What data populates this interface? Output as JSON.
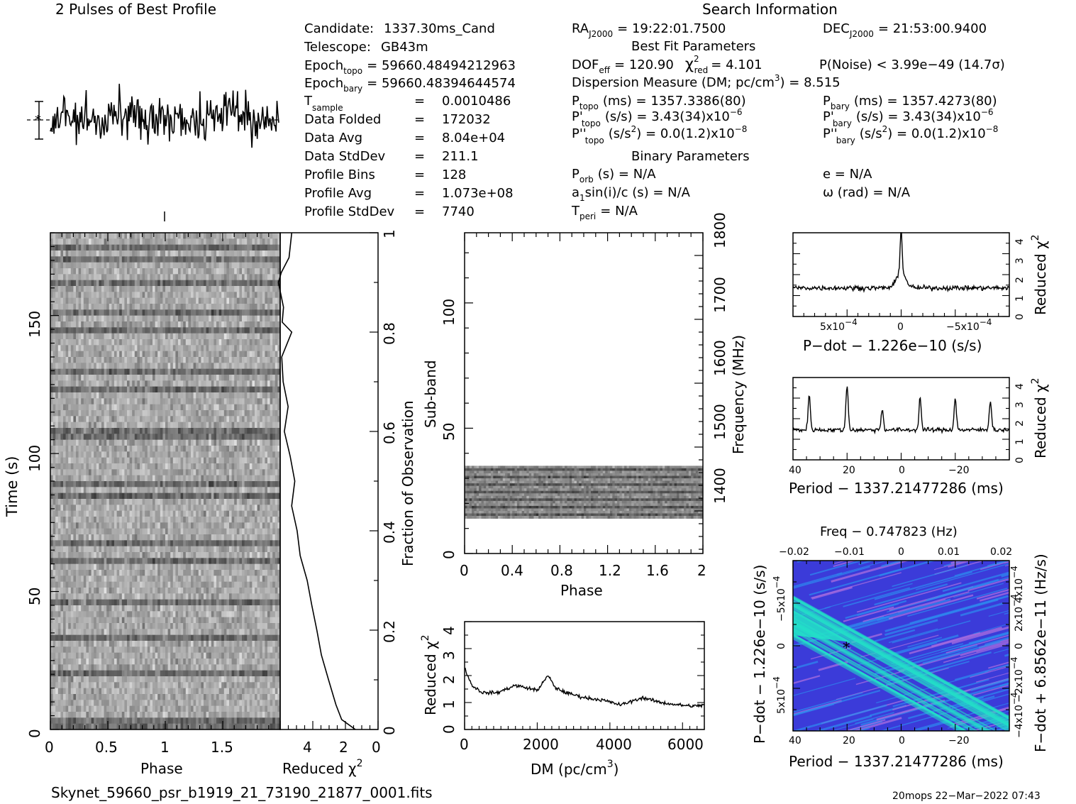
{
  "profile_title": "2 Pulses of Best Profile",
  "search_title": "Search Information",
  "candidate": {
    "candidate_label": "Candidate:",
    "candidate_value": "1337.30ms_Cand",
    "telescope_label": "Telescope:",
    "telescope_value": "GB43m",
    "epoch_topo_label": "Epoch",
    "epoch_topo_sub": "topo",
    "epoch_topo_value": "= 59660.48494212963",
    "epoch_bary_label": "Epoch",
    "epoch_bary_sub": "bary",
    "epoch_bary_value": "= 59660.48394644574",
    "tsample_label": "T",
    "tsample_sub": "sample",
    "tsample_value": "0.0010486",
    "data_folded_label": "Data Folded",
    "data_folded_value": "172032",
    "data_avg_label": "Data Avg",
    "data_avg_value": "8.04e+04",
    "data_stddev_label": "Data StdDev",
    "data_stddev_value": "211.1",
    "profile_bins_label": "Profile Bins",
    "profile_bins_value": "128",
    "profile_avg_label": "Profile Avg",
    "profile_avg_value": "1.073e+08",
    "profile_stddev_label": "Profile StdDev",
    "profile_stddev_value": "7740",
    "equals": "="
  },
  "search": {
    "ra_label": "RA",
    "ra_sub": "J2000",
    "ra_value": "= 19:22:01.7500",
    "dec_label": "DEC",
    "dec_sub": "J2000",
    "dec_value": "= 21:53:00.9400",
    "best_fit_title": "Best Fit Parameters",
    "dof_label": "DOF",
    "dof_sub": "eff",
    "dof_value": "= 120.90",
    "chi_label": "χ",
    "chi_sup": "2",
    "chi_sub": "red",
    "chi_value": "= 4.101",
    "pnoise_label": "P(Noise) < 3.99e−49   (14.7σ)",
    "dm_label": "Dispersion Measure (DM; pc/cm",
    "dm_sup": "3",
    "dm_value": ") = 8.515",
    "ptopo_label": "P",
    "ptopo_sub": "topo",
    "ptopo_value": "(ms) =  1357.3386(80)",
    "pbary_label": "P",
    "pbary_sub": "bary",
    "pbary_value": "(ms) =  1357.4273(80)",
    "pdtopo_label": "P'",
    "pdtopo_sub": "topo",
    "pdtopo_value": "(s/s) =  3.43(34)x10",
    "pdtopo_exp": "−6",
    "pdbary_label": "P'",
    "pdbary_sub": "bary",
    "pdbary_value": "(s/s) =  3.43(34)x10",
    "pdbary_exp": "−6",
    "pddtopo_label": "P''",
    "pddtopo_sub": "topo",
    "pddtopo_value": "(s/s",
    "pddtopo_sup": "2",
    "pddtopo_rest": ") = 0.0(1.2)x10",
    "pddtopo_exp": "−8",
    "pddbary_label": "P''",
    "pddbary_sub": "bary",
    "pddbary_value": "(s/s",
    "pddbary_sup": "2",
    "pddbary_rest": ") = 0.0(1.2)x10",
    "pddbary_exp": "−8",
    "binary_title": "Binary Parameters",
    "porb": "P",
    "porb_sub": "orb",
    "porb_value": "(s) = N/A",
    "ecc": "e = N/A",
    "a1": "a",
    "a1_sub": "1",
    "a1_value": "sin(i)/c (s) = N/A",
    "omega": "ω (rad) = N/A",
    "tperi": "T",
    "tperi_sub": "peri",
    "tperi_value": "= N/A"
  },
  "footer": {
    "filename": "Skynet_59660_psr_b1919_21_73190_21877_0001.fits",
    "stamp": "20mops 22−Mar−2022 07:43"
  },
  "chart_data": [
    {
      "type": "line",
      "name": "profile",
      "title": "2 Pulses of Best Profile",
      "xlim": [
        0,
        2
      ],
      "points": 256
    },
    {
      "type": "heatmap",
      "name": "time-phase",
      "xlabel": "Phase",
      "ylabel": "Time (s)",
      "xlim": [
        0,
        2
      ],
      "ylim": [
        0,
        180
      ],
      "xticks": [
        "0",
        "0.5",
        "1",
        "1.5"
      ],
      "yticks": [
        "0",
        "50",
        "100",
        "150"
      ],
      "colormap": "grayscale"
    },
    {
      "type": "line",
      "name": "reduced-chi2-vs-fraction",
      "xlabel": "Reduced χ",
      "xlabel_sup": "2",
      "ylabel": "Fraction of Observation",
      "xticks": [
        "4",
        "2",
        "0"
      ],
      "yticks": [
        "0",
        "0.2",
        "0.4",
        "0.6",
        "0.8",
        "1"
      ],
      "xlim": [
        5.9,
        0
      ],
      "fraction": [
        0,
        0.02,
        0.05,
        0.1,
        0.15,
        0.2,
        0.25,
        0.3,
        0.35,
        0.4,
        0.45,
        0.5,
        0.55,
        0.6,
        0.65,
        0.7,
        0.75,
        0.8,
        0.82,
        0.85,
        0.9,
        0.92,
        0.95,
        1
      ],
      "chi2": [
        1.4,
        2.2,
        2.5,
        3.0,
        3.4,
        3.7,
        4.0,
        4.3,
        4.7,
        4.9,
        5.2,
        5.0,
        5.3,
        5.6,
        5.4,
        5.7,
        5.8,
        5.2,
        5.8,
        5.7,
        6.0,
        5.8,
        5.4,
        5.2
      ]
    },
    {
      "type": "heatmap",
      "name": "subband-phase",
      "xlabel": "Phase",
      "ylabel": "Sub-band",
      "y2label": "Frequency (MHz)",
      "xlim": [
        0,
        2
      ],
      "ylim": [
        0,
        128
      ],
      "xticks": [
        "0",
        "0.4",
        "0.8",
        "1.2",
        "1.6",
        "2"
      ],
      "yticks": [
        "0",
        "50",
        "100"
      ],
      "y2ticks": [
        "1400",
        "1500",
        "1600",
        "1700",
        "1800"
      ],
      "active_subbands": [
        14,
        35
      ],
      "colormap": "grayscale"
    },
    {
      "type": "line",
      "name": "dm-chi2",
      "xlabel": "DM (pc/cm",
      "xlabel_sup": "3",
      "xlabel_end": ")",
      "ylabel": "Reduced χ",
      "ylabel_sup": "2",
      "xlim": [
        0,
        6600
      ],
      "ylim": [
        0,
        4.4
      ],
      "xticks": [
        "0",
        "2000",
        "4000",
        "6000"
      ],
      "yticks": [
        "0",
        "1",
        "2",
        "3",
        "4"
      ],
      "x": [
        0,
        200,
        500,
        900,
        1400,
        1700,
        2000,
        2300,
        2500,
        2800,
        3300,
        3800,
        4300,
        4900,
        5400,
        5900,
        6300,
        6600
      ],
      "y": [
        2.5,
        1.8,
        1.5,
        1.5,
        1.8,
        1.7,
        1.6,
        2.2,
        1.7,
        1.5,
        1.3,
        1.2,
        1.0,
        1.3,
        1.1,
        1.0,
        0.95,
        1.0
      ]
    },
    {
      "type": "line",
      "name": "pdot-chi2",
      "xlabel": "P−dot − 1.226e−10 (s/s)",
      "ylabel": "Reduced χ",
      "ylabel_sup": "2",
      "ylim": [
        0,
        4.4
      ],
      "yticks": [
        "0",
        "1",
        "2",
        "3",
        "4"
      ],
      "xticks": [
        "5x10",
        "0",
        "−5x10"
      ],
      "xtick_exp": "−4",
      "peak_y": 4.2,
      "baseline": 1.5
    },
    {
      "type": "line",
      "name": "period-chi2",
      "xlabel": "Period − 1337.21477286 (ms)",
      "ylabel": "Reduced χ",
      "ylabel_sup": "2",
      "ylim": [
        0,
        4.4
      ],
      "xticks": [
        "40",
        "20",
        "0",
        "−20"
      ],
      "yticks": [
        "0",
        "1",
        "2",
        "3",
        "4"
      ],
      "peaks_x": [
        34,
        20,
        7,
        -7,
        -20,
        -33
      ],
      "peaks_y": [
        3.4,
        4.0,
        2.7,
        3.3,
        3.3,
        3.2
      ]
    },
    {
      "type": "heatmap",
      "name": "period-pdot",
      "title": "Freq − 0.747823 (Hz)",
      "xlabel": "Period − 1337.21477286 (ms)",
      "ylabel": "P−dot − 1.226e−10 (s/s)",
      "y2label": "F−dot + 6.8562e−11 (Hz/s)",
      "xticks": [
        "40",
        "20",
        "0",
        "−20"
      ],
      "topticks": [
        "−0.02",
        "−0.01",
        "0",
        "0.01",
        "0.02"
      ],
      "yticks": [
        "−5x10",
        "0",
        "5x10"
      ],
      "ytick_exp": "−4",
      "y2ticks": [
        "4x10",
        "2x10",
        "0",
        "−2x10",
        "−4x10"
      ],
      "y2tick_exp": "−4",
      "colormap": "blue-cyan",
      "colors": {
        "bg": "#3b3bd9",
        "mid": "#2d8cf0",
        "hot": "#22e0c8",
        "pink": "#b070e0"
      }
    }
  ]
}
